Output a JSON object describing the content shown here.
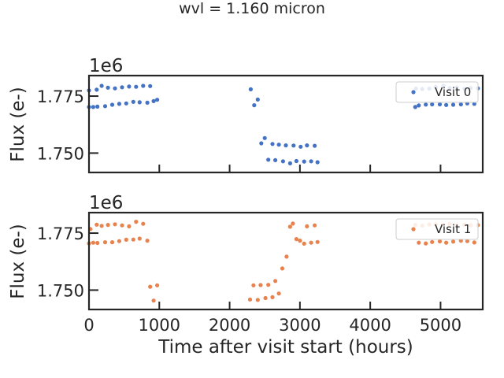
{
  "chart_data": [
    {
      "type": "scatter",
      "title": "wvl = 1.160 micron",
      "xlabel": "",
      "ylabel": "Flux (e-)",
      "offset_label": "1e6",
      "xlim": [
        0,
        5600
      ],
      "ylim": [
        1741500,
        1784000
      ],
      "xticks": [
        0,
        1000,
        2000,
        3000,
        4000,
        5000
      ],
      "yticks": [
        1750000,
        1775000
      ],
      "ytick_labels": [
        "1.750",
        "1.775"
      ],
      "legend_position": "upper right",
      "series": [
        {
          "name": "Visit 0",
          "color": "#4472c4",
          "x": [
            0,
            0,
            60,
            110,
            120,
            180,
            230,
            270,
            330,
            370,
            430,
            470,
            530,
            570,
            630,
            670,
            720,
            770,
            830,
            870,
            920,
            970,
            2300,
            2350,
            2400,
            2450,
            2500,
            2550,
            2610,
            2650,
            2700,
            2760,
            2800,
            2860,
            2910,
            2950,
            3010,
            3060,
            3100,
            3160,
            3210,
            3250,
            4640,
            4650,
            4690,
            4740,
            4790,
            4840,
            4880,
            4930,
            4990,
            5040,
            5080,
            5130,
            5180,
            5230,
            5290,
            5340,
            5380,
            5430,
            5480,
            5530
          ],
          "y": [
            1770200,
            1777500,
            1770200,
            1777800,
            1770400,
            1779500,
            1770600,
            1778700,
            1771200,
            1778400,
            1771600,
            1778900,
            1771800,
            1779200,
            1772500,
            1779100,
            1772300,
            1779500,
            1772100,
            1779400,
            1772800,
            1773400,
            1778000,
            1771000,
            1773500,
            1754300,
            1756600,
            1747100,
            1754000,
            1746900,
            1753700,
            1746400,
            1753400,
            1745500,
            1753300,
            1746500,
            1752800,
            1746300,
            1753400,
            1746400,
            1753200,
            1746000,
            1770200,
            1778300,
            1770900,
            1778100,
            1771300,
            1778300,
            1771400,
            1779000,
            1771400,
            1779500,
            1771100,
            1778500,
            1771200,
            1778800,
            1771400,
            1778200,
            1771800,
            1778500,
            1771600,
            1778400
          ]
        },
        {
          "name": "Visit 1",
          "color": "#e8834e",
          "x": [
            0,
            20,
            60,
            110,
            120,
            180,
            230,
            270,
            330,
            370,
            430,
            470,
            530,
            570,
            630,
            670,
            720,
            770,
            830,
            870,
            920,
            970,
            2290,
            2340,
            2400,
            2440,
            2510,
            2550,
            2610,
            2650,
            2700,
            2750,
            2810,
            2860,
            2900,
            2950,
            3000,
            3060,
            3100,
            3160,
            3210,
            3250,
            4640,
            4690,
            4740,
            4790,
            4840,
            4880,
            4930,
            4990,
            5030,
            5080,
            5130,
            5180,
            5230,
            5290,
            5340,
            5380,
            5430,
            5480,
            5530
          ],
          "y": [
            1770500,
            1776800,
            1770800,
            1778700,
            1770700,
            1778200,
            1771000,
            1778600,
            1771000,
            1778900,
            1771500,
            1778400,
            1772100,
            1778000,
            1772200,
            1780000,
            1772600,
            1779100,
            1771700,
            1751500,
            1745400,
            1752100,
            1745900,
            1752100,
            1745700,
            1752200,
            1746500,
            1752300,
            1746900,
            1754000,
            1748500,
            1759500,
            1764700,
            1777800,
            1779200,
            1772400,
            1771700,
            1770400,
            1778000,
            1770800,
            1778400,
            1771100,
            1778600,
            1770800,
            1778300,
            1770500,
            1778800,
            1771100,
            1778900,
            1771400,
            1778600,
            1770800,
            1779000,
            1771300,
            1778400,
            1771700,
            1778700,
            1771500,
            1778500,
            1770900,
            1778500
          ]
        }
      ]
    },
    {
      "type": "scatter",
      "xlabel": "Time after visit start (hours)",
      "ylabel": "Flux (e-)"
    }
  ]
}
